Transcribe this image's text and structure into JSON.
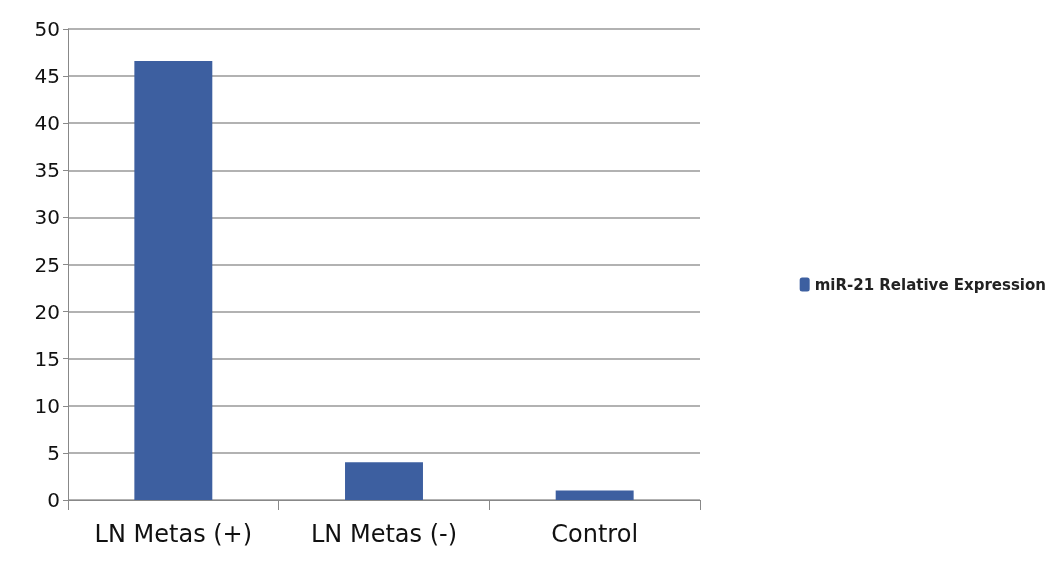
{
  "chart_data": {
    "type": "bar",
    "categories": [
      "LN Metas (+)",
      "LN Metas (-)",
      "Control"
    ],
    "series": [
      {
        "name": "miR-21 Relative Expression",
        "color": "#3d5fa0",
        "values": [
          46.6,
          4.0,
          1.0
        ]
      }
    ],
    "ylim": [
      0,
      50
    ],
    "yticks": [
      0,
      5,
      10,
      15,
      20,
      25,
      30,
      35,
      40,
      45,
      50
    ],
    "grid": "y",
    "legend": "right"
  }
}
